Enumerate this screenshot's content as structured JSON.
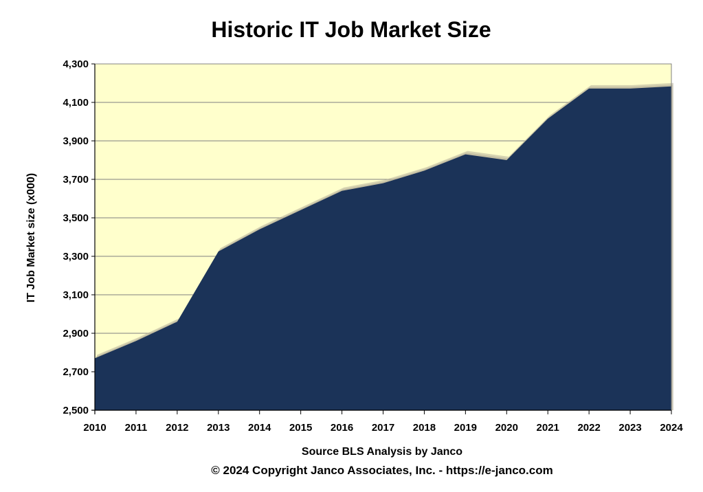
{
  "chart_data": {
    "type": "area",
    "title": "Historic IT Job Market Size",
    "ylabel": "IT Job Market size (x000)",
    "xlabel": "Source BLS Analysis by Janco",
    "footer": "© 2024 Copyright Janco Associates, Inc. - https://e-janco.com",
    "x": [
      "2010",
      "2011",
      "2012",
      "2013",
      "2014",
      "2015",
      "2016",
      "2017",
      "2018",
      "2019",
      "2020",
      "2021",
      "2022",
      "2023",
      "2024"
    ],
    "series": [
      {
        "values": [
          2770,
          2860,
          2960,
          3325,
          3440,
          3540,
          3640,
          3680,
          3745,
          3830,
          3800,
          4015,
          4172,
          4172,
          4183
        ]
      }
    ],
    "ylim": [
      2500,
      4300
    ],
    "yticks": [
      2500,
      2700,
      2900,
      3100,
      3300,
      3500,
      3700,
      3900,
      4100,
      4300
    ],
    "ytick_labels": [
      "2,500",
      "2,700",
      "2,900",
      "3,100",
      "3,300",
      "3,500",
      "3,700",
      "3,900",
      "4,100",
      "4,300"
    ],
    "grid": true,
    "legend": "none",
    "colors": {
      "area_fill": "#1b3358",
      "plot_background": "#ffffcc",
      "gridline": "#7f7f7f",
      "shadow": "#b7b09a"
    }
  }
}
